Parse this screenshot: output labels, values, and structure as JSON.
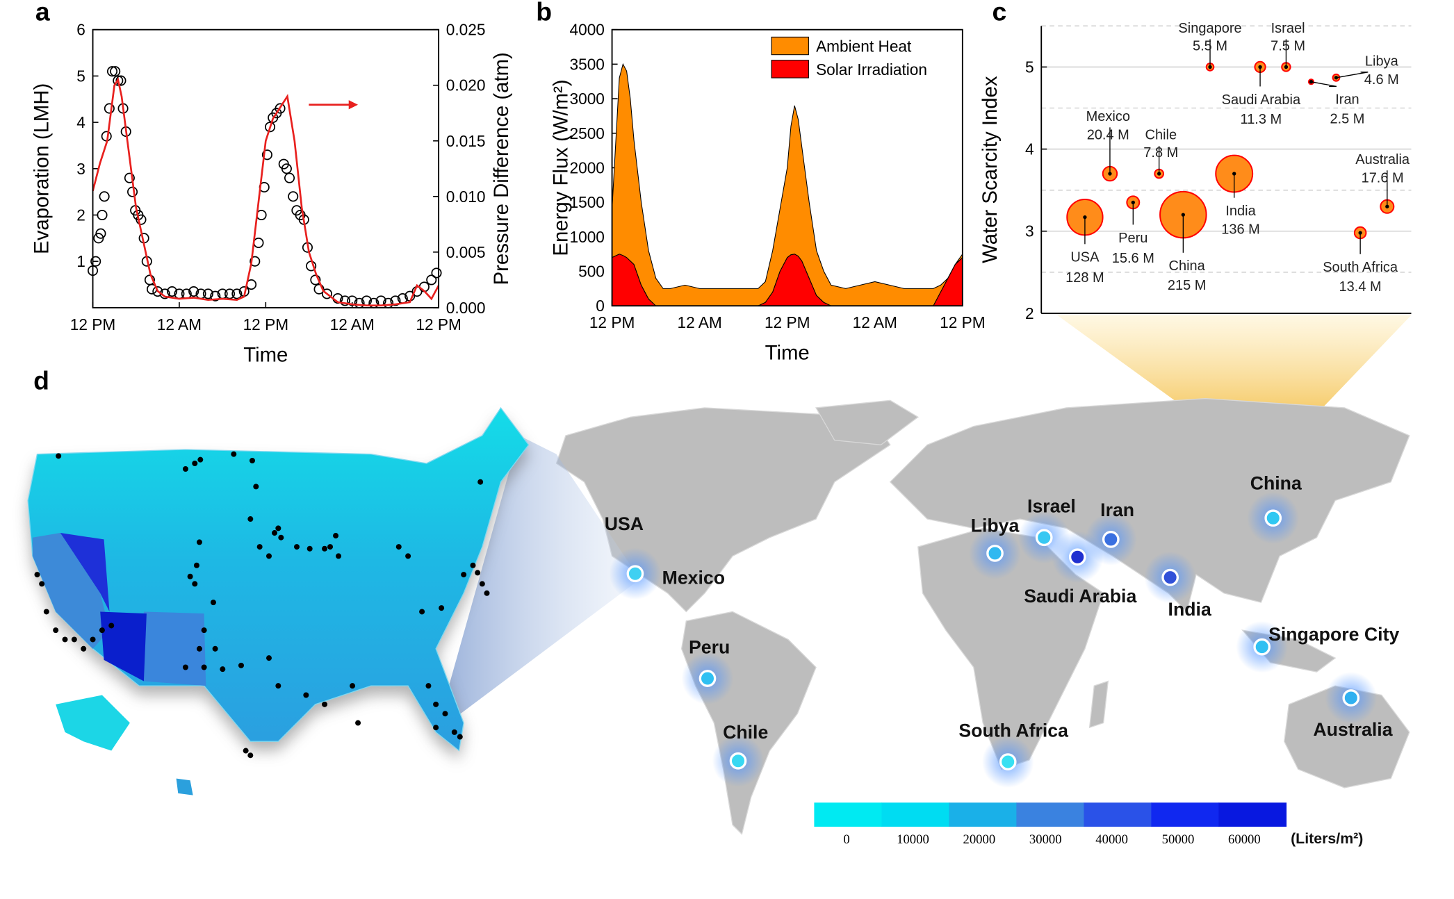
{
  "chart_data": [
    {
      "type": "scatter_line",
      "panel_label": "a",
      "xlabel": "Time",
      "ylabel": "Evaporation (LMH)",
      "y2label": "Pressure Difference (atm)",
      "xlim": [
        0,
        48
      ],
      "xticks": [
        {
          "value": 0,
          "label": "12 PM"
        },
        {
          "value": 12,
          "label": "12 AM"
        },
        {
          "value": 24,
          "label": "12 PM"
        },
        {
          "value": 36,
          "label": "12 AM"
        },
        {
          "value": 48,
          "label": "12 PM"
        }
      ],
      "ylim": [
        0,
        6
      ],
      "yticks": [
        1,
        2,
        3,
        4,
        5,
        6
      ],
      "y2lim": [
        0,
        0.025
      ],
      "y2ticks": [
        {
          "value": 0,
          "label": "0.000"
        },
        {
          "value": 0.005,
          "label": "0.005"
        },
        {
          "value": 0.01,
          "label": "0.010"
        },
        {
          "value": 0.015,
          "label": "0.015"
        },
        {
          "value": 0.02,
          "label": "0.020"
        },
        {
          "value": 0.025,
          "label": "0.025"
        }
      ],
      "series": [
        {
          "kind": "scatter",
          "color": "#000000",
          "x": [
            0,
            0.4,
            0.8,
            1.1,
            1.3,
            1.6,
            1.9,
            2.3,
            2.7,
            3.1,
            3.5,
            3.9,
            4.2,
            4.6,
            5.1,
            5.5,
            5.9,
            6.3,
            6.7,
            7.1,
            7.5,
            7.9,
            8.2,
            9,
            10,
            11,
            12,
            13,
            14,
            15,
            16,
            17,
            18,
            19,
            20,
            21,
            22,
            22.5,
            23,
            23.4,
            23.8,
            24.2,
            24.6,
            25,
            25.5,
            26,
            26.5,
            26.9,
            27.3,
            27.8,
            28.3,
            28.8,
            29.3,
            29.8,
            30.3,
            30.9,
            31.4,
            32.5,
            34,
            35,
            36,
            37,
            38,
            39,
            40,
            41,
            42,
            43,
            44,
            45,
            46,
            47,
            47.7
          ],
          "values": [
            0.8,
            1.0,
            1.5,
            1.6,
            2.0,
            2.4,
            3.7,
            4.3,
            5.1,
            5.1,
            4.9,
            4.9,
            4.3,
            3.8,
            2.8,
            2.5,
            2.1,
            2.0,
            1.9,
            1.5,
            1.0,
            0.6,
            0.4,
            0.35,
            0.3,
            0.35,
            0.3,
            0.3,
            0.35,
            0.3,
            0.3,
            0.25,
            0.3,
            0.3,
            0.3,
            0.35,
            0.5,
            1.0,
            1.4,
            2.0,
            2.6,
            3.3,
            3.9,
            4.1,
            4.2,
            4.3,
            3.1,
            3.0,
            2.8,
            2.4,
            2.1,
            2.0,
            1.9,
            1.3,
            0.9,
            0.6,
            0.4,
            0.3,
            0.2,
            0.15,
            0.15,
            0.1,
            0.15,
            0.1,
            0.15,
            0.1,
            0.15,
            0.2,
            0.25,
            0.35,
            0.45,
            0.6,
            0.75
          ]
        },
        {
          "kind": "line",
          "axis": "y2",
          "color": "#e8201e",
          "x": [
            0,
            1,
            2,
            3,
            3.5,
            4,
            5,
            6,
            7,
            8,
            9,
            10,
            12,
            14,
            16,
            18,
            20,
            21,
            22,
            23,
            24,
            25,
            26,
            27,
            28,
            29,
            30,
            31,
            32,
            34,
            36,
            38,
            40,
            42,
            44,
            45,
            46,
            47,
            48
          ],
          "values": [
            0.0105,
            0.013,
            0.015,
            0.02,
            0.0205,
            0.019,
            0.014,
            0.009,
            0.006,
            0.003,
            0.0015,
            0.001,
            0.0008,
            0.0009,
            0.0007,
            0.0008,
            0.0007,
            0.001,
            0.004,
            0.0095,
            0.015,
            0.017,
            0.018,
            0.019,
            0.015,
            0.009,
            0.005,
            0.003,
            0.0015,
            0.0005,
            0.0003,
            0.0002,
            0.0002,
            0.0003,
            0.0005,
            0.002,
            0.0015,
            0.0008,
            0.002
          ]
        }
      ]
    },
    {
      "type": "area",
      "stacked": true,
      "panel_label": "b",
      "xlabel": "Time",
      "ylabel": "Energy Flux (W/m²)",
      "xlim": [
        0,
        48
      ],
      "xticks": [
        {
          "value": 0,
          "label": "12 PM"
        },
        {
          "value": 12,
          "label": "12 AM"
        },
        {
          "value": 24,
          "label": "12 PM"
        },
        {
          "value": 36,
          "label": "12 AM"
        },
        {
          "value": 48,
          "label": "12 PM"
        }
      ],
      "ylim": [
        0,
        4000
      ],
      "yticks": [
        0,
        500,
        1000,
        1500,
        2000,
        2500,
        3000,
        3500,
        4000
      ],
      "legend": "upper right",
      "x": [
        0,
        1,
        1.5,
        2,
        2.5,
        3,
        4,
        5,
        6,
        7,
        8,
        10,
        12,
        14,
        16,
        18,
        20,
        21,
        22,
        23,
        24,
        24.5,
        25,
        25.5,
        26,
        27,
        28,
        29,
        30,
        32,
        34,
        36,
        38,
        40,
        42,
        44,
        45,
        46,
        47,
        48
      ],
      "series": [
        {
          "name": "Solar Irradiation",
          "color": "#ff0000",
          "values": [
            700,
            750,
            730,
            700,
            650,
            600,
            300,
            100,
            0,
            0,
            0,
            0,
            0,
            0,
            0,
            0,
            0,
            50,
            200,
            500,
            700,
            740,
            750,
            720,
            650,
            400,
            150,
            50,
            0,
            0,
            0,
            0,
            0,
            0,
            0,
            0,
            200,
            400,
            600,
            700
          ]
        },
        {
          "name": "Ambient Heat",
          "color": "#ff8c00",
          "values": [
            700,
            2550,
            2770,
            2700,
            2350,
            1800,
            1200,
            700,
            400,
            250,
            250,
            300,
            250,
            250,
            250,
            250,
            250,
            300,
            600,
            900,
            1300,
            1860,
            2150,
            1980,
            1650,
            1100,
            650,
            450,
            300,
            250,
            300,
            350,
            300,
            250,
            250,
            250,
            100,
            0,
            0,
            50
          ]
        }
      ]
    },
    {
      "type": "bubble",
      "panel_label": "c",
      "ylabel": "Water Scarcity Index",
      "ylim": [
        2,
        5.5
      ],
      "yticks": [
        2,
        3,
        4,
        5
      ],
      "yminor": [
        2.5,
        3.5,
        4.5,
        5.5
      ],
      "color": "#ff8c1a",
      "edge_color": "#ff0000",
      "categories": [
        "USA",
        "Peru",
        "China",
        "India",
        "Mexico",
        "Chile",
        "Australia",
        "South Africa",
        "Singapore",
        "Saudi Arabia",
        "Israel",
        "Iran",
        "Libya"
      ],
      "values": [
        3.17,
        3.35,
        3.2,
        3.7,
        3.7,
        3.7,
        3.3,
        2.98,
        5.0,
        5.0,
        5.0,
        4.82,
        4.87
      ],
      "sizes": [
        128,
        15.6,
        215,
        136,
        20.4,
        7.8,
        17.6,
        13.4,
        5.5,
        11.3,
        7.5,
        2.5,
        4.6
      ],
      "size_labels": [
        "128 M",
        "15.6 M",
        "215 M",
        "136 M",
        "20.4 M",
        "7.8 M",
        "17.6 M",
        "13.4 M",
        "5.5 M",
        "11.3 M",
        "7.5 M",
        "2.5 M",
        "4.6 M"
      ]
    }
  ],
  "map": {
    "panel_label": "d",
    "locations": [
      {
        "name": "USA"
      },
      {
        "name": "Mexico",
        "color": "#3fd0f2"
      },
      {
        "name": "Peru",
        "color": "#2fc0f2"
      },
      {
        "name": "Chile",
        "color": "#38d8f2"
      },
      {
        "name": "South Africa",
        "color": "#38e0f2"
      },
      {
        "name": "Libya",
        "color": "#30b8f0"
      },
      {
        "name": "Israel",
        "color": "#38c8f2"
      },
      {
        "name": "Iran",
        "color": "#3a70e0"
      },
      {
        "name": "Saudi Arabia",
        "color": "#2030d0"
      },
      {
        "name": "India",
        "color": "#3050d8"
      },
      {
        "name": "China",
        "color": "#30c8f2"
      },
      {
        "name": "Singapore City",
        "color": "#30c0f2"
      },
      {
        "name": "Australia",
        "color": "#30b0f0"
      }
    ],
    "colorbar": {
      "colors": [
        "#00eaf2",
        "#00dcf2",
        "#1ab0e8",
        "#3a82e0",
        "#2a52e8",
        "#1028f0",
        "#0818e0"
      ],
      "ticks": [
        0,
        10000,
        20000,
        30000,
        40000,
        50000,
        60000
      ],
      "unit": "(Liters/m²)"
    }
  }
}
